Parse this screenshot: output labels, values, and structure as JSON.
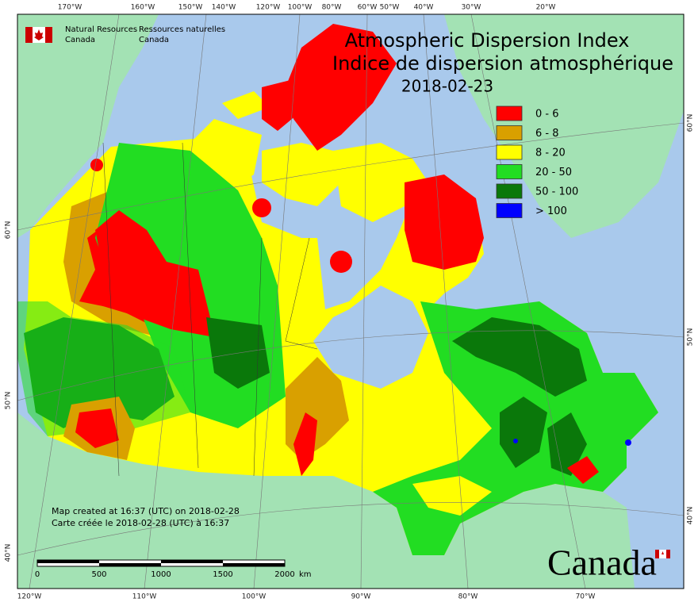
{
  "logo_text": {
    "en_line1": "Natural Resources",
    "en_line2": "Canada",
    "fr_line1": "Ressources naturelles",
    "fr_line2": "Canada"
  },
  "title": {
    "en": "Atmospheric Dispersion Index",
    "fr": "Indice de dispersion atmosphérique",
    "date": "2018-02-23"
  },
  "legend": [
    {
      "label": "0 - 6",
      "color": "#ff0000"
    },
    {
      "label": "6 - 8",
      "color": "#d9a000"
    },
    {
      "label": "8 - 20",
      "color": "#ffff00"
    },
    {
      "label": "20 - 50",
      "color": "#22dd22"
    },
    {
      "label": "50 - 100",
      "color": "#0a780a"
    },
    {
      "label": "> 100",
      "color": "#0000ff"
    }
  ],
  "graticule": {
    "top": [
      "170°W",
      "160°W",
      "150°W",
      "140°W",
      "120°W",
      "100°W",
      "80°W",
      "60°W",
      "50°W",
      "40°W",
      "30°W",
      "20°W"
    ],
    "bottom": [
      "120°W",
      "110°W",
      "100°W",
      "90°W",
      "80°W",
      "70°W"
    ],
    "left": [
      "60°N",
      "50°N",
      "40°N"
    ],
    "right": [
      "60°N",
      "50°N",
      "40°N"
    ]
  },
  "credits": [
    "Map created at 16:37 (UTC) on 2018-02-28",
    "Carte créée le 2018-02-28 (UTC) à 16:37"
  ],
  "scale_bar": {
    "labels": [
      0,
      500,
      1000,
      1500,
      2000
    ],
    "unit": "km"
  },
  "wordmark": "Canada"
}
